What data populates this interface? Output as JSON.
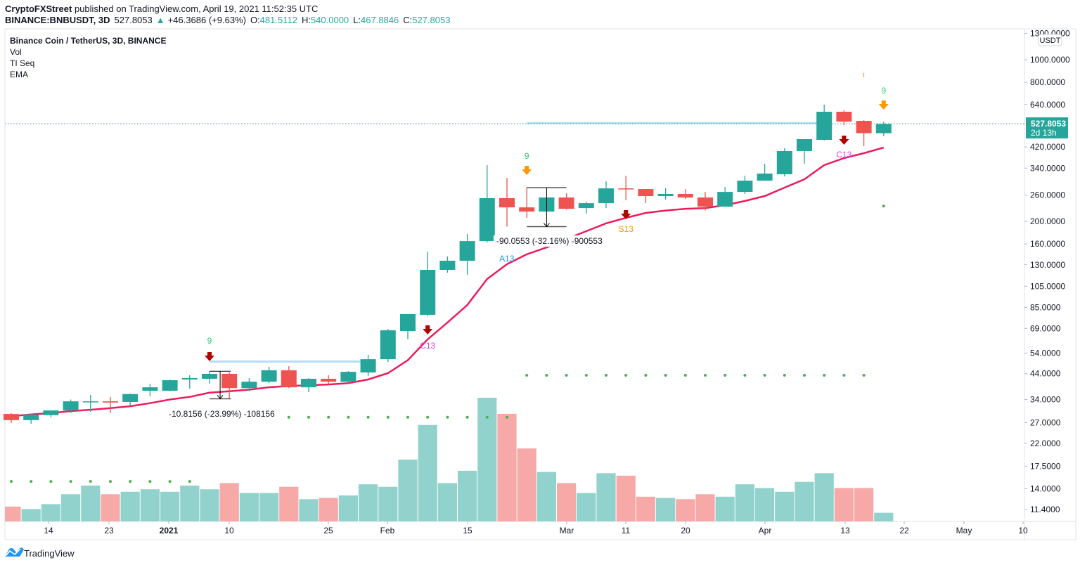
{
  "header": {
    "publisher": "CryptoFXStreet",
    "published_text": " published on TradingView.com, April 19, 2021 11:52:35 UTC",
    "symbol": "BINANCE:BNBUSDT, 3D",
    "last": "527.8053",
    "change": "+46.3686 (+9.63%)",
    "o_label": "O:",
    "o": "481.5112",
    "h_label": "H:",
    "h": "540.0000",
    "l_label": "L:",
    "l": "467.8846",
    "c_label": "C:",
    "c": "527.8053"
  },
  "legend": {
    "title": "Binance Coin / TetherUS, 3D, BINANCE",
    "indicators": [
      "Vol",
      "TI Seq",
      "EMA"
    ]
  },
  "price_axis": {
    "currency_button": "USDT",
    "current_price": "527.8053",
    "countdown": "2d 13h"
  },
  "footer": {
    "brand": "TradingView"
  },
  "colors": {
    "up": "#26a69a",
    "down": "#ef5350",
    "vol_up": "#92d2cc",
    "vol_down": "#f7a9a7",
    "ema": "#ec1c5c",
    "dots": "#4caf50",
    "setup_nine": "#2ecc71",
    "orange": "#ff9800",
    "dark_red": "#b00000",
    "purple": "#e040fb",
    "blue": "#2196f3",
    "level_line": "#b3dcf5"
  },
  "annotations": {
    "measure1": "-10.8156 (-23.99%) -108156",
    "measure2": "-90.0553 (-32.16%) -900553",
    "nine": "9",
    "c13": "C13",
    "a13": "A13",
    "s13": "S13",
    "info": "i"
  },
  "chart_data": {
    "type": "candlestick",
    "title": "Binance Coin / TetherUS, 3D, BINANCE",
    "y_scale": "log",
    "ylim": [
      10,
      1300
    ],
    "y_ticks": [
      1300,
      1000,
      800,
      640,
      420,
      340,
      260,
      200,
      160,
      130,
      105,
      85,
      69,
      54,
      44,
      34,
      27,
      22,
      17.5,
      14,
      11.4
    ],
    "y_tick_labels": [
      "1300.0000",
      "1000.0000",
      "800.0000",
      "640.0000",
      "420.0000",
      "340.0000",
      "260.0000",
      "200.0000",
      "160.0000",
      "130.0000",
      "105.0000",
      "85.0000",
      "69.0000",
      "54.0000",
      "44.0000",
      "34.0000",
      "27.0000",
      "22.0000",
      "17.5000",
      "14.0000",
      "11.4000"
    ],
    "x_tick_labels": [
      "14",
      "23",
      "2021",
      "10",
      "25",
      "Feb",
      "15",
      "Mar",
      "11",
      "20",
      "Apr",
      "13",
      "22",
      "May",
      "10"
    ],
    "grid": false,
    "candles": [
      [
        29.45,
        29.7,
        26.9,
        27.7
      ],
      [
        27.7,
        29.3,
        26.7,
        29.3
      ],
      [
        29.1,
        30.5,
        28.5,
        30.5
      ],
      [
        30.5,
        34.0,
        29.7,
        33.4
      ],
      [
        33.2,
        35.6,
        30.1,
        33.4
      ],
      [
        33.4,
        34.9,
        29.7,
        33.0
      ],
      [
        33.2,
        36.1,
        31.8,
        35.9
      ],
      [
        37.1,
        39.8,
        35.1,
        38.4
      ],
      [
        37.1,
        41.5,
        36.9,
        41.2
      ],
      [
        41.5,
        43.3,
        37.9,
        42.1
      ],
      [
        41.8,
        45.1,
        39.8,
        43.9
      ],
      [
        43.9,
        44.5,
        34.3,
        38.1
      ],
      [
        38.1,
        42.1,
        36.9,
        40.6
      ],
      [
        40.6,
        47.1,
        40.0,
        45.5
      ],
      [
        45.5,
        47.4,
        38.1,
        38.4
      ],
      [
        38.4,
        42.1,
        36.6,
        41.8
      ],
      [
        41.8,
        43.3,
        39.5,
        40.6
      ],
      [
        40.6,
        45.1,
        40.0,
        44.8
      ],
      [
        44.5,
        53.0,
        43.0,
        50.8
      ],
      [
        50.8,
        68.7,
        49.4,
        67.7
      ],
      [
        67.2,
        79.6,
        61.9,
        79.6
      ],
      [
        79.0,
        148.2,
        78.0,
        123.6
      ],
      [
        123.6,
        141.1,
        120.2,
        135.3
      ],
      [
        135.3,
        176.6,
        117.7,
        164.5
      ],
      [
        164.5,
        350.4,
        162.2,
        252.2
      ],
      [
        252.2,
        308.9,
        189.9,
        230.1
      ],
      [
        230.1,
        280.0,
        207.3,
        220.7
      ],
      [
        220.7,
        253.9,
        220.7,
        253.9
      ],
      [
        253.9,
        264.7,
        225.3,
        226.9
      ],
      [
        228.5,
        243.5,
        216.2,
        240.0
      ],
      [
        240.0,
        298.3,
        228.5,
        278.0
      ],
      [
        278.0,
        315.3,
        246.9,
        276.1
      ],
      [
        276.1,
        276.1,
        240.0,
        257.5
      ],
      [
        257.5,
        278.0,
        248.6,
        263.0
      ],
      [
        263.0,
        276.1,
        250.4,
        253.9
      ],
      [
        253.9,
        268.4,
        223.0,
        231.8
      ],
      [
        231.8,
        282.0,
        231.8,
        268.4
      ],
      [
        268.4,
        315.3,
        263.0,
        300.2
      ],
      [
        300.2,
        355.4,
        300.2,
        322.1
      ],
      [
        320.0,
        414.5,
        313.2,
        403.0
      ],
      [
        403.0,
        453.8,
        355.4,
        453.8
      ],
      [
        450.6,
        639.2,
        447.6,
        595.9
      ],
      [
        595.9,
        604.3,
        521.8,
        540.2
      ],
      [
        544.0,
        548.0,
        423.0,
        481.5
      ],
      [
        481.5112,
        540.0,
        467.8846,
        527.8053
      ]
    ],
    "candle_fields": [
      "open",
      "high",
      "low",
      "close"
    ],
    "ema": [
      28.8,
      29.3,
      29.7,
      30.3,
      30.7,
      31.2,
      31.8,
      32.8,
      34.0,
      34.9,
      36.4,
      36.9,
      37.5,
      38.4,
      38.9,
      39.2,
      39.5,
      40.0,
      41.5,
      44.2,
      50.3,
      61.9,
      73.2,
      87.1,
      112.8,
      130.7,
      144.2,
      154.5,
      168.1,
      181.5,
      196.3,
      207.3,
      217.8,
      223.0,
      226.9,
      228.5,
      235.1,
      245.2,
      257.5,
      280.0,
      304.4,
      350.4,
      375.7,
      394.6,
      417.3
    ],
    "volume_relative_percent": [
      12,
      10,
      14,
      22,
      29,
      22,
      24,
      26,
      24,
      29,
      26,
      31,
      23,
      23,
      28,
      18,
      19,
      21,
      30,
      28,
      50,
      78,
      31,
      41,
      100,
      87,
      59,
      40,
      31,
      23,
      39,
      37,
      20,
      19,
      18,
      22,
      20,
      30,
      27,
      24,
      32,
      39,
      27,
      27,
      7
    ],
    "support_dots": [
      {
        "price": 15.05,
        "from_bar": 0,
        "to_bar": 9
      },
      {
        "price": 28.5,
        "from_bar": 14,
        "to_bar": 25
      },
      {
        "price": 43.3,
        "from_bar": 26,
        "to_bar": 43
      },
      {
        "price": 233,
        "from_bar": 44,
        "to_bar": 44
      }
    ],
    "level_lines": [
      {
        "price": 49.6,
        "from_bar": 10,
        "to_bar": 18
      },
      {
        "price": 532,
        "from_bar": 26,
        "to_bar": 41
      }
    ],
    "measurements": [
      {
        "from_price": 45.08,
        "to_price": 34.26,
        "change": -10.8156,
        "percent": -23.99
      },
      {
        "from_price": 280.0,
        "to_price": 189.9,
        "change": -90.0553,
        "percent": -32.16
      }
    ]
  }
}
